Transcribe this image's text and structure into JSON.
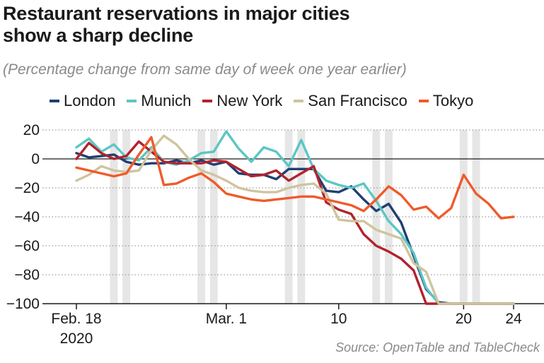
{
  "header": {
    "title_line1": "Restaurant reservations in major cities",
    "title_line2": "show a sharp decline",
    "subtitle": "(Percentage change from same day of week one year earlier)"
  },
  "source": "Source: OpenTable and TableCheck",
  "chart_data": {
    "type": "line",
    "title": "Restaurant reservations in major cities show a sharp decline",
    "subtitle": "(Percentage change from same day of week one year earlier)",
    "x": [
      "2020-02-18",
      "2020-02-19",
      "2020-02-20",
      "2020-02-21",
      "2020-02-22",
      "2020-02-23",
      "2020-02-24",
      "2020-02-25",
      "2020-02-26",
      "2020-02-27",
      "2020-02-28",
      "2020-02-29",
      "2020-03-01",
      "2020-03-02",
      "2020-03-03",
      "2020-03-04",
      "2020-03-05",
      "2020-03-06",
      "2020-03-07",
      "2020-03-08",
      "2020-03-09",
      "2020-03-10",
      "2020-03-11",
      "2020-03-12",
      "2020-03-13",
      "2020-03-14",
      "2020-03-15",
      "2020-03-16",
      "2020-03-17",
      "2020-03-18",
      "2020-03-19",
      "2020-03-20",
      "2020-03-21",
      "2020-03-22",
      "2020-03-23",
      "2020-03-24"
    ],
    "ylim": [
      -100,
      20
    ],
    "yticks": [
      20,
      0,
      -20,
      -40,
      -60,
      -80,
      -100
    ],
    "xtick_labels": [
      {
        "date": "2020-02-18",
        "label": "Feb. 18",
        "sublabel": "2020"
      },
      {
        "date": "2020-03-01",
        "label": "Mar. 1"
      },
      {
        "date": "2020-03-10",
        "label": "10"
      },
      {
        "date": "2020-03-20",
        "label": "20"
      },
      {
        "date": "2020-03-24",
        "label": "24"
      }
    ],
    "weekend_bands": [
      "2020-02-21",
      "2020-02-22",
      "2020-02-28",
      "2020-02-29",
      "2020-03-06",
      "2020-03-07",
      "2020-03-13",
      "2020-03-14",
      "2020-03-20",
      "2020-03-21"
    ],
    "grid": "horizontal-dotted",
    "legend_position": "top",
    "series": [
      {
        "name": "London",
        "color": "#1f3f73",
        "values": [
          4,
          1,
          2,
          3,
          -2,
          -4,
          -3,
          -3,
          -1,
          -3,
          -1,
          -4,
          -2,
          -10,
          -11,
          -11,
          -14,
          -7,
          -7,
          -7,
          -22,
          -23,
          -19,
          -28,
          -36,
          -31,
          -44,
          -67,
          -90,
          -99,
          -100,
          -100,
          -100,
          -100,
          -100,
          -100
        ]
      },
      {
        "name": "Munich",
        "color": "#5cc6c4",
        "values": [
          8,
          14,
          5,
          10,
          1,
          -1,
          8,
          -2,
          -4,
          -1,
          4,
          5,
          19,
          7,
          -2,
          8,
          5,
          -5,
          13,
          -7,
          -15,
          -18,
          -20,
          -17,
          -29,
          -43,
          -52,
          -65,
          -89,
          -100,
          -100,
          -100,
          -100,
          -100,
          -100,
          -100
        ]
      },
      {
        "name": "New York",
        "color": "#b3222c",
        "values": [
          0,
          11,
          4,
          0,
          2,
          12,
          5,
          -2,
          -3,
          -3,
          -3,
          -1,
          -2,
          -7,
          -12,
          -11,
          -8,
          -15,
          -10,
          -5,
          -30,
          -35,
          -38,
          -52,
          -60,
          -64,
          -69,
          -77,
          -100,
          -100,
          -100,
          -100,
          -100,
          -100,
          -100,
          -100
        ]
      },
      {
        "name": "San Francisco",
        "color": "#cfc49e",
        "values": [
          -15,
          -11,
          -5,
          -8,
          -9,
          -8,
          6,
          16,
          10,
          0,
          -8,
          -11,
          -15,
          -20,
          -22,
          -23,
          -23,
          -20,
          -18,
          -17,
          -24,
          -42,
          -43,
          -43,
          -49,
          -52,
          -55,
          -72,
          -78,
          -100,
          -100,
          -100,
          -100,
          -100,
          -100,
          -100
        ]
      },
      {
        "name": "Tokyo",
        "color": "#ef5b2b",
        "values": [
          -6,
          -8,
          -10,
          -12,
          -10,
          3,
          15,
          -18,
          -17,
          -13,
          -10,
          -16,
          -24,
          -26,
          -28,
          -29,
          -28,
          -27,
          -26,
          -26,
          -28,
          -30,
          -32,
          -36,
          -28,
          -19,
          -25,
          -35,
          -33,
          -41,
          -34,
          -11,
          -24,
          -31,
          -41,
          -40
        ]
      }
    ]
  }
}
